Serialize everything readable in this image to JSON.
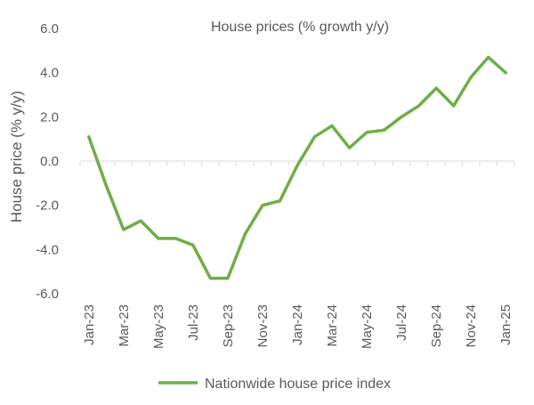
{
  "chart_data": {
    "type": "line",
    "title": "House prices (% growth y/y)",
    "xlabel": "",
    "ylabel": "House price (% y/y)",
    "ylim": [
      -6.0,
      6.0
    ],
    "y_ticks": [
      "6.0",
      "4.0",
      "2.0",
      "0.0",
      "-2.0",
      "-4.0",
      "-6.0"
    ],
    "x_tick_labels": [
      "Jan-23",
      "Mar-23",
      "May-23",
      "Jul-23",
      "Sep-23",
      "Nov-23",
      "Jan-24",
      "Mar-24",
      "May-24",
      "Jul-24",
      "Sep-24",
      "Nov-24",
      "Jan-25"
    ],
    "grid": false,
    "legend_position": "bottom",
    "x": [
      "Jan-23",
      "Feb-23",
      "Mar-23",
      "Apr-23",
      "May-23",
      "Jun-23",
      "Jul-23",
      "Aug-23",
      "Sep-23",
      "Oct-23",
      "Nov-23",
      "Dec-23",
      "Jan-24",
      "Feb-24",
      "Mar-24",
      "Apr-24",
      "May-24",
      "Jun-24",
      "Jul-24",
      "Aug-24",
      "Sep-24",
      "Oct-24",
      "Nov-24",
      "Dec-24",
      "Jan-25"
    ],
    "series": [
      {
        "name": "Nationwide house price index",
        "color": "#70AD47",
        "values": [
          1.1,
          -1.1,
          -3.1,
          -2.7,
          -3.5,
          -3.5,
          -3.8,
          -5.3,
          -5.3,
          -3.3,
          -2.0,
          -1.8,
          -0.2,
          1.1,
          1.6,
          0.6,
          1.3,
          1.4,
          2.0,
          2.5,
          3.3,
          2.5,
          3.8,
          4.7,
          4.0
        ]
      }
    ]
  }
}
